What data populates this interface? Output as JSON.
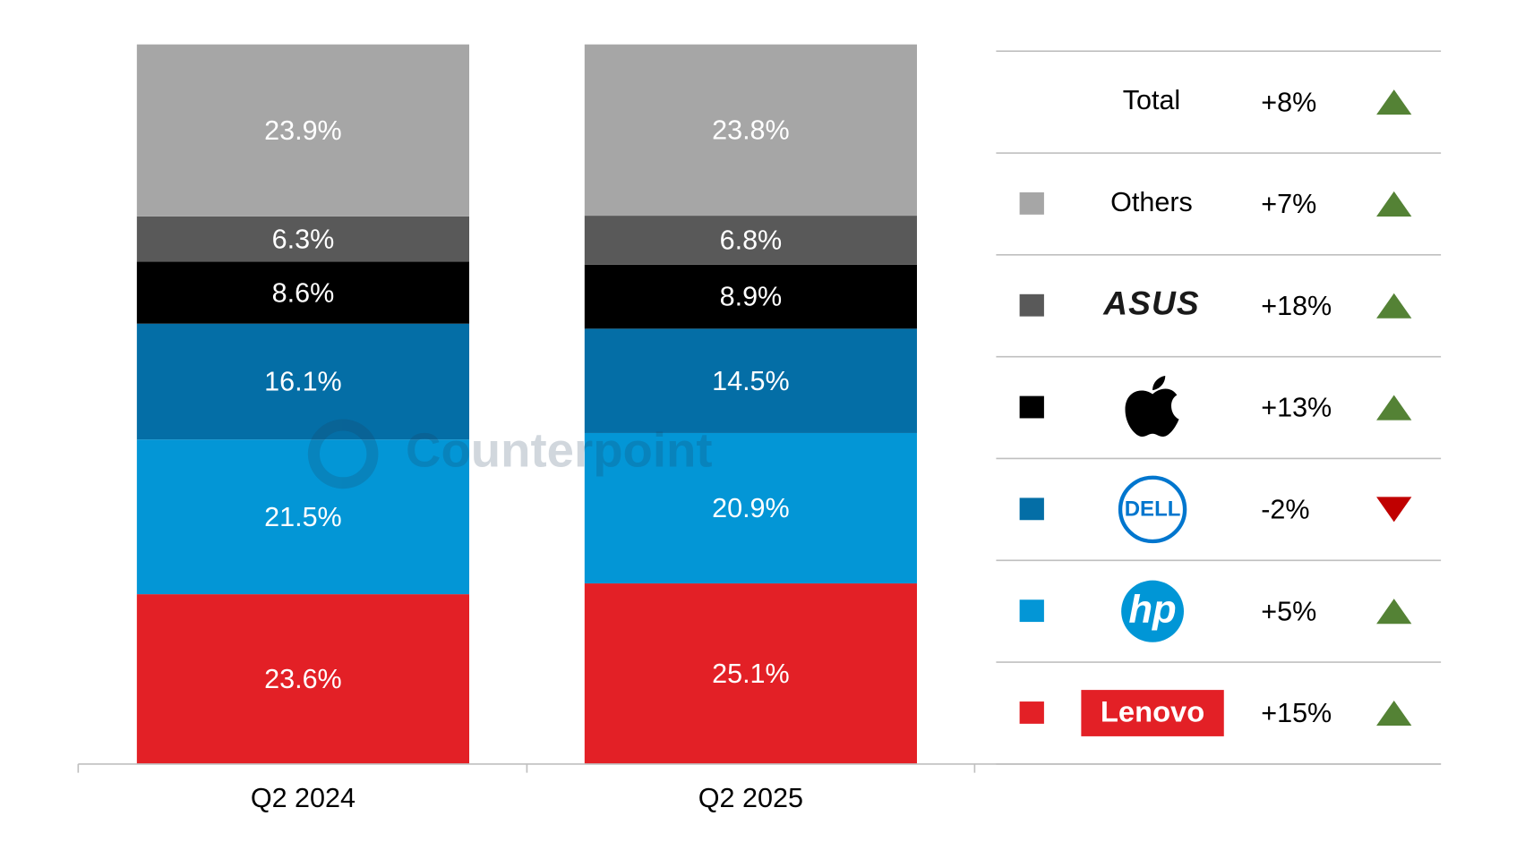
{
  "chart_data": {
    "type": "stacked_bar",
    "watermark": "Counterpoint",
    "categories": [
      "Q2 2024",
      "Q2 2025"
    ],
    "ylim": [
      0,
      100
    ],
    "series": [
      {
        "name": "Lenovo",
        "color": "#e32026",
        "values": [
          23.6,
          25.1
        ],
        "value_labels": [
          "23.6%",
          "25.1%"
        ],
        "growth": 15,
        "growth_label": "+15%"
      },
      {
        "name": "hp",
        "color": "#0396d6",
        "values": [
          21.5,
          20.9
        ],
        "value_labels": [
          "21.5%",
          "20.9%"
        ],
        "growth": 5,
        "growth_label": "+5%"
      },
      {
        "name": "DELL",
        "color": "#046ea6",
        "values": [
          16.1,
          14.5
        ],
        "value_labels": [
          "16.1%",
          "14.5%"
        ],
        "growth": -2,
        "growth_label": "-2%"
      },
      {
        "name": null,
        "color": "#000000",
        "values": [
          8.6,
          8.9
        ],
        "value_labels": [
          "8.6%",
          "8.9%"
        ],
        "growth": 13,
        "growth_label": "+13%"
      },
      {
        "name": "ASUS",
        "color": "#595959",
        "values": [
          6.3,
          6.8
        ],
        "value_labels": [
          "6.3%",
          "6.8%"
        ],
        "growth": 18,
        "growth_label": "+18%"
      },
      {
        "name": "Others",
        "color": "#a6a6a6",
        "values": [
          23.9,
          23.8
        ],
        "value_labels": [
          "23.9%",
          "23.8%"
        ],
        "growth": 7,
        "growth_label": "+7%"
      }
    ],
    "total": {
      "name": "Total",
      "growth": 8,
      "growth_label": "+8%"
    },
    "up_color": "#548235",
    "down_color": "#c00000"
  }
}
